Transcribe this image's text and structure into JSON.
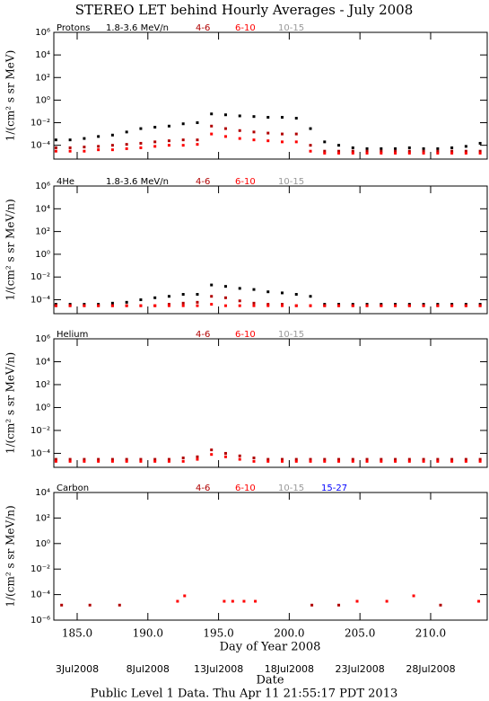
{
  "page": {
    "title": "STEREO LET behind Hourly Averages - July 2008",
    "xlabel": "Day of Year 2008",
    "date_label": "Date",
    "footer": "Public Level 1 Data. Thu Apr 11 21:55:17 PDT 2013",
    "date_ticks": [
      {
        "value": 185,
        "label": "3Jul2008"
      },
      {
        "value": 190,
        "label": "8Jul2008"
      },
      {
        "value": 195,
        "label": "13Jul2008"
      },
      {
        "value": 200,
        "label": "18Jul2008"
      },
      {
        "value": 205,
        "label": "23Jul2008"
      },
      {
        "value": 210,
        "label": "28Jul2008"
      }
    ]
  },
  "chart_data": [
    {
      "type": "scatter",
      "title": "Protons",
      "ylabel": "1/(cm² s sr MeV)",
      "log_y": true,
      "xlim": [
        183.35,
        214
      ],
      "ylim": [
        6e-06,
        1000000
      ],
      "yticks": [
        {
          "value": 1000000,
          "label": "10⁶"
        },
        {
          "value": 10000,
          "label": "10⁴"
        },
        {
          "value": 100,
          "label": "10²"
        },
        {
          "value": 1,
          "label": "10⁰"
        },
        {
          "value": 0.01,
          "label": "10⁻²"
        },
        {
          "value": 0.0001,
          "label": "10⁻⁴"
        }
      ],
      "x": [
        183.5,
        184.5,
        185.5,
        186.5,
        187.5,
        188.5,
        189.5,
        190.5,
        191.5,
        192.5,
        193.5,
        194.5,
        195.5,
        196.5,
        197.5,
        198.5,
        199.5,
        200.5,
        201.5,
        202.5,
        203.5,
        204.5,
        205.5,
        206.5,
        207.5,
        208.5,
        209.5,
        210.5,
        211.5,
        212.5,
        213.5
      ],
      "series": [
        {
          "name": "1.8-3.6 MeV/n",
          "color": "#000000",
          "values": [
            0.0003,
            0.0003,
            0.0004,
            0.0006,
            0.0008,
            0.0015,
            0.003,
            0.004,
            0.005,
            0.008,
            0.01,
            0.06,
            0.05,
            0.04,
            0.035,
            0.03,
            0.03,
            0.025,
            0.003,
            0.0002,
            0.0001,
            6e-05,
            5e-05,
            5e-05,
            5e-05,
            6e-05,
            5e-05,
            5e-05,
            6e-05,
            8e-05,
            0.00015
          ]
        },
        {
          "name": "4-6",
          "color": "#b00000",
          "values": [
            6e-05,
            6e-05,
            7e-05,
            8e-05,
            0.0001,
            0.00012,
            0.00015,
            0.0002,
            0.00025,
            0.0003,
            0.0003,
            0.005,
            0.003,
            0.002,
            0.0015,
            0.0012,
            0.001,
            0.001,
            0.0001,
            3e-05,
            3e-05,
            3e-05,
            3e-05,
            3e-05,
            3e-05,
            3e-05,
            3e-05,
            3e-05,
            3e-05,
            3e-05,
            3e-05
          ]
        },
        {
          "name": "6-10",
          "color": "#ff0000",
          "values": [
            3e-05,
            3e-05,
            3e-05,
            4e-05,
            4e-05,
            5e-05,
            6e-05,
            8e-05,
            0.0001,
            0.0001,
            0.00012,
            0.001,
            0.0006,
            0.0004,
            0.0003,
            0.00025,
            0.0002,
            0.0002,
            3e-05,
            2e-05,
            2e-05,
            2e-05,
            2e-05,
            2e-05,
            2e-05,
            2e-05,
            2e-05,
            2e-05,
            2e-05,
            2e-05,
            2e-05
          ]
        },
        {
          "name": "10-15",
          "color": "#999999",
          "values": [
            null,
            null,
            null,
            null,
            null,
            null,
            null,
            null,
            null,
            null,
            null,
            null,
            null,
            null,
            null,
            null,
            null,
            null,
            null,
            null,
            null,
            null,
            null,
            null,
            null,
            null,
            null,
            null,
            null,
            null,
            null
          ]
        }
      ]
    },
    {
      "type": "scatter",
      "title": "4He",
      "ylabel": "1/(cm² s sr MeV/n)",
      "log_y": true,
      "xlim": [
        183.35,
        214
      ],
      "ylim": [
        6e-06,
        1000000
      ],
      "yticks": [
        {
          "value": 1000000,
          "label": "10⁶"
        },
        {
          "value": 10000,
          "label": "10⁴"
        },
        {
          "value": 100,
          "label": "10²"
        },
        {
          "value": 1,
          "label": "10⁰"
        },
        {
          "value": 0.01,
          "label": "10⁻²"
        },
        {
          "value": 0.0001,
          "label": "10⁻⁴"
        }
      ],
      "x": [
        183.5,
        184.5,
        185.5,
        186.5,
        187.5,
        188.5,
        189.5,
        190.5,
        191.5,
        192.5,
        193.5,
        194.5,
        195.5,
        196.5,
        197.5,
        198.5,
        199.5,
        200.5,
        201.5,
        202.5,
        203.5,
        204.5,
        205.5,
        206.5,
        207.5,
        208.5,
        209.5,
        210.5,
        211.5,
        212.5,
        213.5
      ],
      "series": [
        {
          "name": "1.8-3.6 MeV/n",
          "color": "#000000",
          "values": [
            4e-05,
            4e-05,
            4e-05,
            4e-05,
            5e-05,
            6e-05,
            0.0001,
            0.00015,
            0.0002,
            0.0003,
            0.0003,
            0.002,
            0.0015,
            0.001,
            0.0008,
            0.0005,
            0.0004,
            0.0003,
            0.0002,
            4e-05,
            4e-05,
            4e-05,
            4e-05,
            4e-05,
            4e-05,
            4e-05,
            4e-05,
            4e-05,
            4e-05,
            4e-05,
            4e-05
          ]
        },
        {
          "name": "4-6",
          "color": "#b00000",
          "values": [
            3e-05,
            3e-05,
            3e-05,
            3e-05,
            3e-05,
            3e-05,
            3e-05,
            3e-05,
            4e-05,
            5e-05,
            6e-05,
            0.0002,
            0.00015,
            8e-05,
            5e-05,
            4e-05,
            4e-05,
            3e-05,
            3e-05,
            3e-05,
            3e-05,
            3e-05,
            3e-05,
            3e-05,
            3e-05,
            3e-05,
            3e-05,
            3e-05,
            3e-05,
            3e-05,
            3e-05
          ]
        },
        {
          "name": "6-10",
          "color": "#ff0000",
          "values": [
            3e-05,
            3e-05,
            3e-05,
            3e-05,
            3e-05,
            3e-05,
            3e-05,
            3e-05,
            3e-05,
            3e-05,
            3e-05,
            4e-05,
            3e-05,
            3e-05,
            3e-05,
            3e-05,
            3e-05,
            3e-05,
            3e-05,
            3e-05,
            3e-05,
            3e-05,
            3e-05,
            3e-05,
            3e-05,
            3e-05,
            3e-05,
            3e-05,
            3e-05,
            3e-05,
            3e-05
          ]
        },
        {
          "name": "10-15",
          "color": "#999999",
          "values": [
            null,
            null,
            null,
            null,
            null,
            null,
            null,
            null,
            null,
            null,
            null,
            null,
            null,
            null,
            null,
            null,
            null,
            null,
            null,
            null,
            null,
            null,
            null,
            null,
            null,
            null,
            null,
            null,
            null,
            null,
            null
          ]
        }
      ]
    },
    {
      "type": "scatter",
      "title": "Helium",
      "ylabel": "1/(cm² s sr MeV/n)",
      "log_y": true,
      "xlim": [
        183.35,
        214
      ],
      "ylim": [
        6e-06,
        1000000
      ],
      "yticks": [
        {
          "value": 1000000,
          "label": "10⁶"
        },
        {
          "value": 10000,
          "label": "10⁴"
        },
        {
          "value": 100,
          "label": "10²"
        },
        {
          "value": 1,
          "label": "10⁰"
        },
        {
          "value": 0.01,
          "label": "10⁻²"
        },
        {
          "value": 0.0001,
          "label": "10⁻⁴"
        }
      ],
      "x": [
        183.5,
        184.5,
        185.5,
        186.5,
        187.5,
        188.5,
        189.5,
        190.5,
        191.5,
        192.5,
        193.5,
        194.5,
        195.5,
        196.5,
        197.5,
        198.5,
        199.5,
        200.5,
        201.5,
        202.5,
        203.5,
        204.5,
        205.5,
        206.5,
        207.5,
        208.5,
        209.5,
        210.5,
        211.5,
        212.5,
        213.5
      ],
      "series": [
        {
          "name": "4-6",
          "color": "#b00000",
          "values": [
            3e-05,
            3e-05,
            3e-05,
            3e-05,
            3e-05,
            3e-05,
            3e-05,
            3e-05,
            3e-05,
            4e-05,
            5e-05,
            0.0002,
            0.0001,
            6e-05,
            4e-05,
            3e-05,
            3e-05,
            3e-05,
            3e-05,
            3e-05,
            3e-05,
            3e-05,
            3e-05,
            3e-05,
            3e-05,
            3e-05,
            3e-05,
            3e-05,
            3e-05,
            3e-05,
            3e-05
          ]
        },
        {
          "name": "6-10",
          "color": "#ff0000",
          "values": [
            2e-05,
            2e-05,
            2e-05,
            2e-05,
            2e-05,
            2e-05,
            2e-05,
            2e-05,
            2e-05,
            2e-05,
            3e-05,
            8e-05,
            5e-05,
            3e-05,
            2e-05,
            2e-05,
            2e-05,
            2e-05,
            2e-05,
            2e-05,
            2e-05,
            2e-05,
            2e-05,
            2e-05,
            2e-05,
            2e-05,
            2e-05,
            2e-05,
            2e-05,
            2e-05,
            2e-05
          ]
        },
        {
          "name": "10-15",
          "color": "#999999",
          "values": [
            null,
            null,
            null,
            null,
            null,
            null,
            null,
            null,
            null,
            null,
            null,
            null,
            null,
            null,
            null,
            null,
            null,
            null,
            null,
            null,
            null,
            null,
            null,
            null,
            null,
            null,
            null,
            null,
            null,
            null,
            null
          ]
        }
      ]
    },
    {
      "type": "scatter",
      "title": "Carbon",
      "ylabel": "1/(cm² s sr MeV/n)",
      "log_y": true,
      "xlim": [
        183.35,
        214
      ],
      "ylim": [
        1e-06,
        10000
      ],
      "yticks": [
        {
          "value": 10000,
          "label": "10⁴"
        },
        {
          "value": 100,
          "label": "10²"
        },
        {
          "value": 1,
          "label": "10⁰"
        },
        {
          "value": 0.01,
          "label": "10⁻²"
        },
        {
          "value": 0.0001,
          "label": "10⁻⁴"
        },
        {
          "value": 1e-06,
          "label": "10⁻⁶"
        }
      ],
      "xticks": [
        {
          "value": 185,
          "label": "185.0"
        },
        {
          "value": 190,
          "label": "190.0"
        },
        {
          "value": 195,
          "label": "195.0"
        },
        {
          "value": 200,
          "label": "200.0"
        },
        {
          "value": 205,
          "label": "205.0"
        },
        {
          "value": 210,
          "label": "210.0"
        }
      ],
      "x": [
        183.9,
        185.9,
        188.0,
        192.1,
        192.6,
        195.4,
        196.0,
        196.8,
        197.6,
        201.6,
        203.5,
        204.8,
        206.9,
        208.8,
        210.7,
        213.4
      ],
      "series": [
        {
          "name": "4-6",
          "color": "#b00000",
          "values": [
            1.5e-05,
            1.5e-05,
            1.5e-05,
            null,
            null,
            null,
            null,
            null,
            null,
            1.5e-05,
            1.5e-05,
            null,
            null,
            null,
            1.5e-05,
            null
          ]
        },
        {
          "name": "6-10",
          "color": "#ff0000",
          "values": [
            null,
            null,
            null,
            3e-05,
            8e-05,
            3e-05,
            3e-05,
            3e-05,
            3e-05,
            null,
            null,
            3e-05,
            3e-05,
            8e-05,
            null,
            3e-05
          ]
        },
        {
          "name": "10-15",
          "color": "#999999",
          "values": [
            null,
            null,
            null,
            null,
            null,
            null,
            null,
            null,
            null,
            null,
            null,
            null,
            null,
            null,
            null,
            null
          ]
        },
        {
          "name": "15-27",
          "color": "#0000ff",
          "values": [
            null,
            null,
            null,
            null,
            null,
            null,
            null,
            null,
            null,
            null,
            null,
            null,
            null,
            null,
            null,
            null
          ]
        }
      ]
    }
  ]
}
